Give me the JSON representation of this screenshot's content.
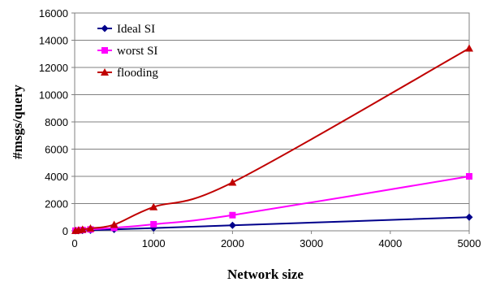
{
  "chart_data": {
    "type": "line",
    "title": "",
    "xlabel": "Network size",
    "ylabel": "#msgs/query",
    "xlim": [
      0,
      5000
    ],
    "ylim": [
      0,
      16000
    ],
    "xticks": [
      0,
      1000,
      2000,
      3000,
      4000,
      5000
    ],
    "yticks": [
      0,
      2000,
      4000,
      6000,
      8000,
      10000,
      12000,
      14000,
      16000
    ],
    "grid": {
      "y": true,
      "x": false
    },
    "legend": "top-left, inside plot",
    "series": [
      {
        "name": "Ideal SI",
        "color": "#00008b",
        "marker": "diamond",
        "x": [
          10,
          50,
          100,
          200,
          500,
          1000,
          2000,
          5000
        ],
        "y": [
          3,
          10,
          20,
          40,
          100,
          200,
          400,
          1000
        ]
      },
      {
        "name": "worst SI",
        "color": "#ff00ff",
        "marker": "square",
        "x": [
          10,
          50,
          100,
          200,
          500,
          1000,
          2000,
          5000
        ],
        "y": [
          8,
          30,
          60,
          100,
          220,
          480,
          1150,
          4000
        ]
      },
      {
        "name": "flooding",
        "color": "#c00000",
        "marker": "triangle",
        "x": [
          10,
          50,
          100,
          200,
          500,
          1000,
          2000,
          5000
        ],
        "y": [
          10,
          50,
          100,
          180,
          450,
          1750,
          3550,
          13400
        ]
      }
    ]
  }
}
